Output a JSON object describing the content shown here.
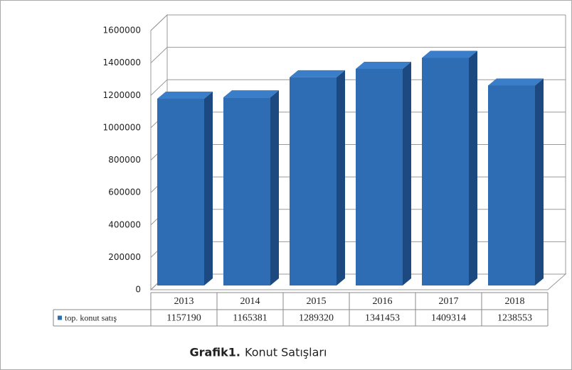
{
  "chart_data": {
    "type": "bar",
    "caption_bold": "Grafik1.",
    "caption": "Konut Satışları",
    "categories": [
      "2013",
      "2014",
      "2015",
      "2016",
      "2017",
      "2018"
    ],
    "series": [
      {
        "name": "top. konut satış",
        "color": "#2e6db4",
        "values": [
          1157190,
          1165381,
          1289320,
          1341453,
          1409314,
          1238553
        ]
      }
    ],
    "ylim": [
      0,
      1600000
    ],
    "yticks": [
      0,
      200000,
      400000,
      600000,
      800000,
      1000000,
      1200000,
      1400000,
      1600000
    ],
    "grid": true,
    "data_table": true
  }
}
